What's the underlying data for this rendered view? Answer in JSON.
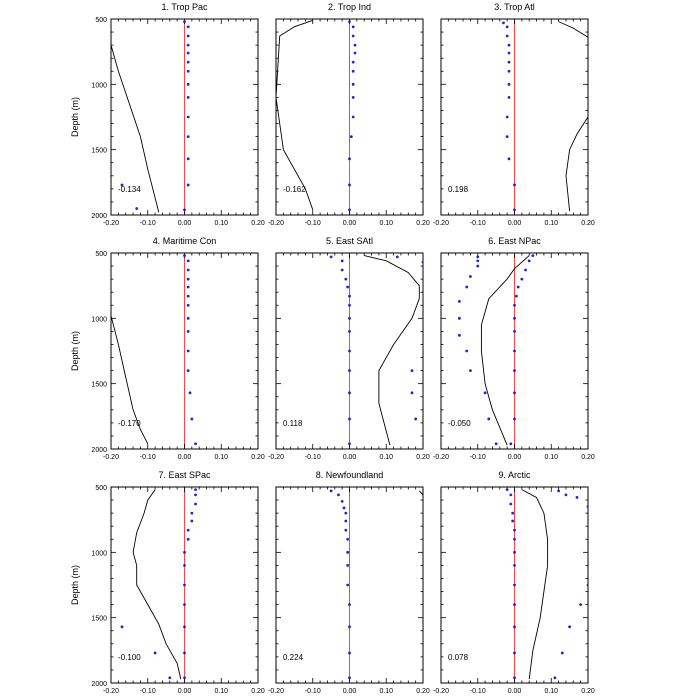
{
  "chart_data": {
    "type": "scatter",
    "ylabel": "Depth (m)",
    "ylim": [
      500,
      2000
    ],
    "xlim": [
      -0.2,
      0.2
    ],
    "y_ticks": [
      500,
      1000,
      1500,
      2000
    ],
    "x_ticks": [
      -0.2,
      -0.1,
      0.0,
      0.1,
      0.2
    ],
    "x_tick_labels": [
      "-0.20",
      "-0.10",
      "0.00",
      "0.10",
      "0.20"
    ],
    "colors": {
      "dots": "#2222dd",
      "line": "#000000",
      "zero": "#ff4444"
    },
    "panels": [
      {
        "title": "1. Trop Pac",
        "corr": "-0.134",
        "dots": [
          [
            0.0,
            520
          ],
          [
            0.01,
            560
          ],
          [
            0.01,
            630
          ],
          [
            0.01,
            700
          ],
          [
            0.01,
            760
          ],
          [
            0.01,
            830
          ],
          [
            0.01,
            900
          ],
          [
            0.01,
            1000
          ],
          [
            0.01,
            1100
          ],
          [
            0.01,
            1250
          ],
          [
            0.01,
            1400
          ],
          [
            0.01,
            1570
          ],
          [
            0.01,
            1770
          ],
          [
            0.0,
            1960
          ],
          [
            -0.17,
            1770
          ],
          [
            -0.13,
            1950
          ]
        ],
        "line": [
          [
            -0.2,
            700
          ],
          [
            -0.18,
            900
          ],
          [
            -0.15,
            1150
          ],
          [
            -0.12,
            1400
          ],
          [
            -0.1,
            1650
          ],
          [
            -0.07,
            1980
          ]
        ]
      },
      {
        "title": "2. Trop Ind",
        "corr": "-0.162",
        "dots": [
          [
            0.0,
            520
          ],
          [
            0.01,
            560
          ],
          [
            0.01,
            630
          ],
          [
            0.015,
            700
          ],
          [
            0.015,
            760
          ],
          [
            0.01,
            830
          ],
          [
            0.01,
            900
          ],
          [
            0.01,
            1000
          ],
          [
            0.01,
            1100
          ],
          [
            0.01,
            1250
          ],
          [
            0.005,
            1400
          ],
          [
            0.0,
            1570
          ],
          [
            0.0,
            1770
          ],
          [
            0.0,
            1960
          ]
        ],
        "line": [
          [
            -0.1,
            510
          ],
          [
            -0.15,
            560
          ],
          [
            -0.19,
            630
          ],
          [
            -0.2,
            1100
          ],
          [
            -0.18,
            1500
          ],
          [
            -0.12,
            1800
          ],
          [
            -0.1,
            1960
          ]
        ]
      },
      {
        "title": "3. Trop Atl",
        "corr": "0.198",
        "dots": [
          [
            -0.03,
            530
          ],
          [
            -0.02,
            560
          ],
          [
            -0.02,
            630
          ],
          [
            -0.015,
            700
          ],
          [
            -0.015,
            760
          ],
          [
            -0.015,
            830
          ],
          [
            -0.015,
            900
          ],
          [
            -0.015,
            1000
          ],
          [
            -0.015,
            1100
          ],
          [
            -0.02,
            1250
          ],
          [
            -0.02,
            1400
          ],
          [
            -0.015,
            1570
          ],
          [
            0.0,
            1770
          ],
          [
            0.0,
            1960
          ]
        ],
        "line": [
          [
            0.2,
            1250
          ],
          [
            0.17,
            1380
          ],
          [
            0.15,
            1500
          ],
          [
            0.14,
            1700
          ],
          [
            0.15,
            1970
          ]
        ],
        "line2": [
          [
            0.12,
            520
          ],
          [
            0.16,
            570
          ],
          [
            0.2,
            640
          ]
        ]
      },
      {
        "title": "4. Maritime Con",
        "corr": "-0.170",
        "dots": [
          [
            0.0,
            520
          ],
          [
            0.01,
            560
          ],
          [
            0.01,
            630
          ],
          [
            0.01,
            700
          ],
          [
            0.01,
            760
          ],
          [
            0.01,
            830
          ],
          [
            0.01,
            900
          ],
          [
            0.01,
            1000
          ],
          [
            0.01,
            1100
          ],
          [
            0.01,
            1250
          ],
          [
            0.01,
            1400
          ],
          [
            0.015,
            1570
          ],
          [
            0.02,
            1770
          ],
          [
            0.03,
            1960
          ]
        ],
        "line": [
          [
            -0.2,
            980
          ],
          [
            -0.18,
            1200
          ],
          [
            -0.16,
            1450
          ],
          [
            -0.14,
            1700
          ],
          [
            -0.12,
            1850
          ],
          [
            -0.1,
            1960
          ]
        ]
      },
      {
        "title": "5. East SAtl",
        "corr": "0.118",
        "dots": [
          [
            -0.05,
            530
          ],
          [
            -0.02,
            560
          ],
          [
            -0.02,
            630
          ],
          [
            -0.01,
            700
          ],
          [
            -0.005,
            760
          ],
          [
            0.0,
            830
          ],
          [
            0.0,
            900
          ],
          [
            0.0,
            1000
          ],
          [
            0.0,
            1100
          ],
          [
            0.0,
            1250
          ],
          [
            0.0,
            1400
          ],
          [
            0.0,
            1570
          ],
          [
            0.0,
            1770
          ],
          [
            0.0,
            1960
          ],
          [
            0.13,
            530
          ],
          [
            0.2,
            570
          ],
          [
            0.17,
            1400
          ],
          [
            0.17,
            1570
          ],
          [
            0.18,
            1770
          ]
        ],
        "line": [
          [
            0.04,
            520
          ],
          [
            0.1,
            560
          ],
          [
            0.16,
            650
          ],
          [
            0.19,
            750
          ],
          [
            0.19,
            850
          ],
          [
            0.17,
            1000
          ],
          [
            0.12,
            1200
          ],
          [
            0.08,
            1400
          ],
          [
            0.08,
            1650
          ],
          [
            0.11,
            1970
          ]
        ]
      },
      {
        "title": "6. East NPac",
        "corr": "-0.050",
        "dots": [
          [
            -0.1,
            530
          ],
          [
            -0.1,
            560
          ],
          [
            -0.1,
            600
          ],
          [
            -0.12,
            680
          ],
          [
            -0.13,
            760
          ],
          [
            -0.15,
            870
          ],
          [
            -0.15,
            1000
          ],
          [
            -0.15,
            1130
          ],
          [
            -0.13,
            1250
          ],
          [
            -0.12,
            1400
          ],
          [
            -0.08,
            1570
          ],
          [
            -0.07,
            1770
          ],
          [
            -0.05,
            1960
          ],
          [
            0.05,
            520
          ],
          [
            0.04,
            560
          ],
          [
            0.03,
            630
          ],
          [
            0.02,
            700
          ],
          [
            0.01,
            760
          ],
          [
            0.005,
            830
          ],
          [
            0.0,
            900
          ],
          [
            0.0,
            1000
          ],
          [
            0.0,
            1100
          ],
          [
            0.0,
            1250
          ],
          [
            0.0,
            1400
          ],
          [
            0.0,
            1570
          ],
          [
            0.0,
            1770
          ],
          [
            -0.01,
            1960
          ]
        ],
        "line": [
          [
            0.04,
            520
          ],
          [
            0.02,
            570
          ],
          [
            0.0,
            620
          ],
          [
            -0.02,
            700
          ],
          [
            -0.07,
            850
          ],
          [
            -0.09,
            1050
          ],
          [
            -0.09,
            1250
          ],
          [
            -0.08,
            1500
          ],
          [
            -0.06,
            1700
          ],
          [
            -0.02,
            1970
          ]
        ]
      },
      {
        "title": "7. East SPac",
        "corr": "-0.100",
        "dots": [
          [
            0.03,
            520
          ],
          [
            0.03,
            560
          ],
          [
            0.03,
            630
          ],
          [
            0.02,
            700
          ],
          [
            0.02,
            760
          ],
          [
            0.01,
            830
          ],
          [
            0.01,
            900
          ],
          [
            0.0,
            1000
          ],
          [
            0.0,
            1100
          ],
          [
            0.0,
            1250
          ],
          [
            0.0,
            1400
          ],
          [
            0.0,
            1570
          ],
          [
            0.0,
            1770
          ],
          [
            0.0,
            1960
          ],
          [
            -0.17,
            1570
          ],
          [
            -0.08,
            1770
          ],
          [
            -0.04,
            1960
          ]
        ],
        "line": [
          [
            -0.08,
            520
          ],
          [
            -0.1,
            600
          ],
          [
            -0.11,
            700
          ],
          [
            -0.13,
            850
          ],
          [
            -0.14,
            1000
          ],
          [
            -0.13,
            1100
          ],
          [
            -0.13,
            1250
          ],
          [
            -0.1,
            1400
          ],
          [
            -0.07,
            1550
          ],
          [
            -0.05,
            1700
          ],
          [
            -0.02,
            1850
          ],
          [
            -0.01,
            1970
          ]
        ]
      },
      {
        "title": "8. Newfoundland",
        "corr": "0.224",
        "dots": [
          [
            -0.05,
            530
          ],
          [
            -0.03,
            560
          ],
          [
            -0.02,
            610
          ],
          [
            -0.015,
            660
          ],
          [
            -0.01,
            700
          ],
          [
            -0.01,
            760
          ],
          [
            -0.01,
            830
          ],
          [
            -0.005,
            900
          ],
          [
            -0.005,
            1000
          ],
          [
            -0.005,
            1100
          ],
          [
            -0.005,
            1250
          ],
          [
            0.0,
            1400
          ],
          [
            0.0,
            1570
          ],
          [
            0.0,
            1770
          ],
          [
            0.0,
            1960
          ]
        ],
        "line": [
          [
            0.19,
            530
          ],
          [
            0.2,
            560
          ]
        ]
      },
      {
        "title": "9. Arctic",
        "corr": "0.078",
        "dots": [
          [
            -0.02,
            520
          ],
          [
            -0.01,
            560
          ],
          [
            -0.01,
            630
          ],
          [
            -0.005,
            700
          ],
          [
            -0.005,
            760
          ],
          [
            0.0,
            830
          ],
          [
            0.0,
            900
          ],
          [
            0.0,
            1000
          ],
          [
            0.0,
            1100
          ],
          [
            0.0,
            1250
          ],
          [
            0.0,
            1400
          ],
          [
            0.0,
            1570
          ],
          [
            0.0,
            1770
          ],
          [
            0.0,
            1960
          ],
          [
            0.12,
            530
          ],
          [
            0.14,
            560
          ],
          [
            0.17,
            580
          ],
          [
            0.2,
            650
          ],
          [
            0.2,
            1250
          ],
          [
            0.18,
            1400
          ],
          [
            0.15,
            1570
          ],
          [
            0.13,
            1770
          ],
          [
            0.11,
            1960
          ]
        ],
        "line": [
          [
            0.02,
            520
          ],
          [
            0.06,
            580
          ],
          [
            0.08,
            700
          ],
          [
            0.09,
            900
          ],
          [
            0.09,
            1100
          ],
          [
            0.08,
            1300
          ],
          [
            0.07,
            1500
          ],
          [
            0.05,
            1750
          ],
          [
            0.04,
            1970
          ]
        ]
      }
    ]
  }
}
